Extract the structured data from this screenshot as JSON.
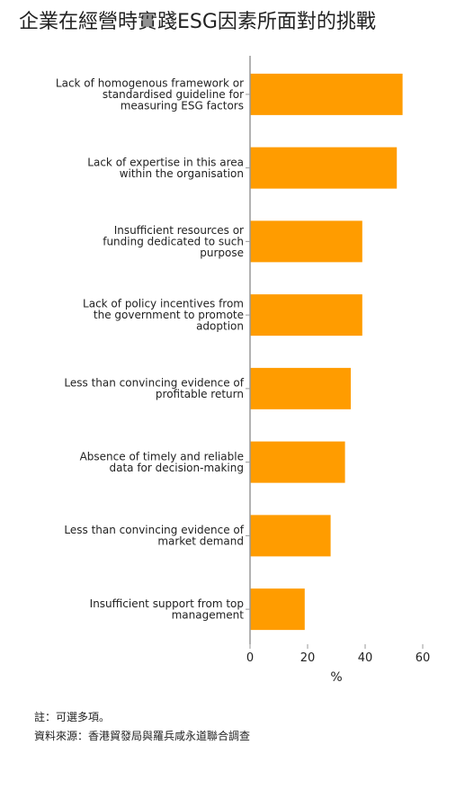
{
  "title": "企業在經營時實踐ESG因素所面對的挑戰",
  "notes": {
    "note": "註：可選多項。",
    "source": "資料來源：香港貿發局與羅兵咸永道聯合調查"
  },
  "colors": {
    "bar": "#FF9C00",
    "axis": "#999999",
    "text": "#222222"
  },
  "chart_data": {
    "type": "bar",
    "orientation": "horizontal",
    "categories": [
      [
        "Lack of homogenous framework or",
        "standardised guideline for",
        "measuring ESG factors"
      ],
      [
        "Lack of expertise in this area",
        "within the organisation"
      ],
      [
        "Insufficient resources or",
        "funding dedicated to such",
        "purpose"
      ],
      [
        "Lack of policy incentives from",
        "the government to promote",
        "adoption"
      ],
      [
        "Less than convincing evidence of",
        "profitable return"
      ],
      [
        "Absence of timely and reliable",
        "data for decision-making"
      ],
      [
        "Less than convincing evidence of",
        "market demand"
      ],
      [
        "Insufficient support from top",
        "management"
      ]
    ],
    "values": [
      53,
      51,
      39,
      39,
      35,
      33,
      28,
      19
    ],
    "xlabel": "%",
    "xlim": [
      0,
      60
    ],
    "xticks": [
      0,
      20,
      40,
      60
    ],
    "grid": false
  }
}
